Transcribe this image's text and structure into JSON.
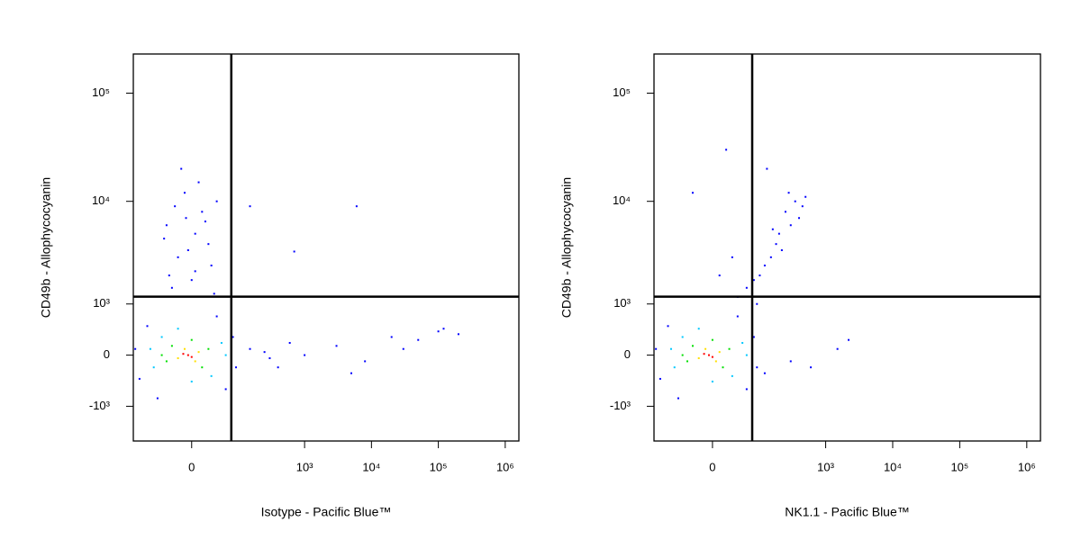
{
  "chart_data": [
    {
      "type": "scatter",
      "xlabel": "Isotype - Pacific Blue™",
      "ylabel": "CD49b - Allophycocyanin",
      "xscale": "biexponential",
      "yscale": "biexponential",
      "xlim": [
        -150,
        1600000
      ],
      "ylim": [
        -2300,
        230000
      ],
      "xticks": [
        0,
        {
          "value": 1000,
          "label": "10³"
        },
        {
          "value": 10000,
          "label": "10⁴"
        },
        {
          "value": 100000,
          "label": "10⁵"
        },
        {
          "value": 1000000,
          "label": "10⁶"
        }
      ],
      "yticks": [
        {
          "value": -1000,
          "label": "-10³"
        },
        0,
        {
          "value": 1000,
          "label": "10³"
        },
        {
          "value": 10000,
          "label": "10⁴"
        },
        {
          "value": 100000,
          "label": "10⁵"
        }
      ],
      "quadrant_gate": {
        "x": 75,
        "y": 1210
      },
      "series": [
        {
          "color": "#0000ff",
          "x": [
            -20,
            5,
            -35,
            15,
            -10,
            25,
            -40,
            30,
            0,
            -25,
            10,
            -5,
            20,
            -30,
            35,
            -15,
            5,
            -45,
            40,
            -8,
            150,
            300,
            600,
            1000,
            3000,
            8000,
            20000,
            50000,
            100000,
            200000,
            120000,
            30000,
            5000,
            400,
            250,
            150,
            6000,
            700,
            -120,
            80,
            -90,
            60,
            -60,
            -140,
            90,
            40
          ],
          "y": [
            3000,
            5000,
            2000,
            8000,
            12000,
            4000,
            6000,
            2500,
            1800,
            9000,
            15000,
            3500,
            6500,
            1500,
            1300,
            20000,
            2200,
            4500,
            10000,
            7000,
            100,
            -50,
            200,
            0,
            150,
            -100,
            300,
            250,
            400,
            350,
            450,
            100,
            -300,
            -200,
            50,
            9000,
            9000,
            3400,
            -400,
            300,
            500,
            -600,
            -800,
            100,
            -200,
            700
          ]
        },
        {
          "color": "#00c8ff",
          "x": [
            -70,
            50,
            -50,
            30,
            -80,
            60,
            0,
            -20
          ],
          "y": [
            -200,
            200,
            300,
            -350,
            100,
            0,
            -450,
            450
          ]
        },
        {
          "color": "#00e000",
          "x": [
            -40,
            25,
            -30,
            15,
            0,
            -50
          ],
          "y": [
            -100,
            100,
            150,
            -200,
            250,
            0
          ]
        },
        {
          "color": "#ffe000",
          "x": [
            -20,
            10,
            -10,
            5
          ],
          "y": [
            -50,
            50,
            100,
            -100
          ]
        },
        {
          "color": "#ff0000",
          "x": [
            -5,
            0,
            -12
          ],
          "y": [
            0,
            -30,
            20
          ]
        }
      ]
    },
    {
      "type": "scatter",
      "xlabel": "NK1.1 - Pacific Blue™",
      "ylabel": "CD49b - Allophycocyanin",
      "xscale": "biexponential",
      "yscale": "biexponential",
      "xlim": [
        -150,
        1600000
      ],
      "ylim": [
        -2300,
        230000
      ],
      "xticks": [
        0,
        {
          "value": 1000,
          "label": "10³"
        },
        {
          "value": 10000,
          "label": "10⁴"
        },
        {
          "value": 100000,
          "label": "10⁵"
        },
        {
          "value": 1000000,
          "label": "10⁶"
        }
      ],
      "yticks": [
        {
          "value": -1000,
          "label": "-10³"
        },
        0,
        {
          "value": 1000,
          "label": "10³"
        },
        {
          "value": 10000,
          "label": "10⁴"
        },
        {
          "value": 100000,
          "label": "10⁵"
        }
      ],
      "quadrant_gate": {
        "x": 75,
        "y": 1210
      },
      "series": [
        {
          "color": "#0000ff",
          "x": [
            200,
            150,
            300,
            250,
            180,
            400,
            120,
            350,
            220,
            100,
            280,
            160,
            450,
            60,
            40,
            80,
            30,
            10,
            130,
            20,
            500,
            90,
            300,
            600,
            1500,
            2200,
            120,
            -30,
            -120,
            80,
            -90,
            60,
            -60,
            -140,
            90,
            40
          ],
          "y": [
            5000,
            3000,
            6000,
            8000,
            4000,
            7000,
            2500,
            10000,
            3500,
            2000,
            12000,
            5500,
            9000,
            1500,
            1200,
            1800,
            3000,
            2000,
            20000,
            30000,
            11000,
            1000,
            -100,
            -200,
            100,
            250,
            -300,
            12000,
            -400,
            300,
            500,
            -600,
            -800,
            100,
            -200,
            700
          ]
        },
        {
          "color": "#00c8ff",
          "x": [
            -70,
            50,
            -50,
            30,
            -80,
            60,
            0,
            -20
          ],
          "y": [
            -200,
            200,
            300,
            -350,
            100,
            0,
            -450,
            450
          ]
        },
        {
          "color": "#00e000",
          "x": [
            -40,
            25,
            -30,
            15,
            0,
            -50
          ],
          "y": [
            -100,
            100,
            150,
            -200,
            250,
            0
          ]
        },
        {
          "color": "#ffe000",
          "x": [
            -20,
            10,
            -10,
            5
          ],
          "y": [
            -50,
            50,
            100,
            -100
          ]
        },
        {
          "color": "#ff0000",
          "x": [
            -5,
            0,
            -12
          ],
          "y": [
            0,
            -30,
            20
          ]
        }
      ]
    }
  ]
}
